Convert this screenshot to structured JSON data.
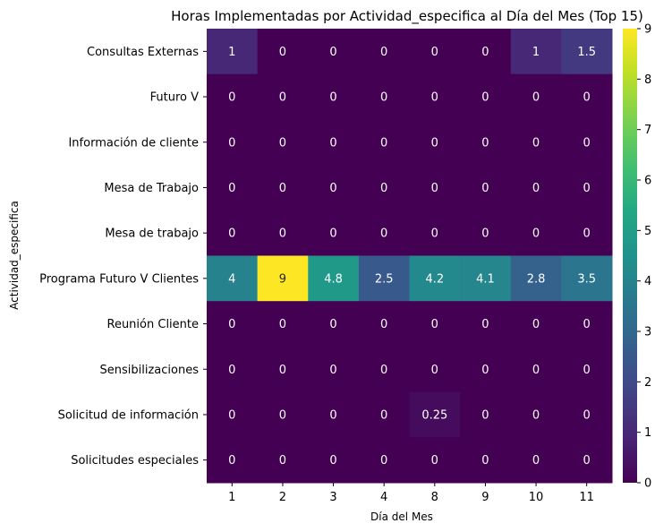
{
  "chart_data": {
    "type": "heatmap",
    "title": "Horas Implementadas por Actividad_especifica al Día del Mes (Top 15)",
    "xlabel": "Día del Mes",
    "ylabel": "Actividad_especifica",
    "x_categories": [
      "1",
      "2",
      "3",
      "4",
      "8",
      "9",
      "10",
      "11"
    ],
    "y_categories": [
      "Consultas Externas",
      "Futuro V",
      "Información de cliente",
      "Mesa de Trabajo",
      "Mesa de trabajo",
      "Programa Futuro V Clientes",
      "Reunión Cliente",
      "Sensibilizaciones",
      "Solicitud de información",
      "Solicitudes especiales"
    ],
    "values": [
      [
        1,
        0,
        0,
        0,
        0,
        0,
        1,
        1.5
      ],
      [
        0,
        0,
        0,
        0,
        0,
        0,
        0,
        0
      ],
      [
        0,
        0,
        0,
        0,
        0,
        0,
        0,
        0
      ],
      [
        0,
        0,
        0,
        0,
        0,
        0,
        0,
        0
      ],
      [
        0,
        0,
        0,
        0,
        0,
        0,
        0,
        0
      ],
      [
        4,
        9,
        4.8,
        2.5,
        4.2,
        4.1,
        2.8,
        3.5
      ],
      [
        0,
        0,
        0,
        0,
        0,
        0,
        0,
        0
      ],
      [
        0,
        0,
        0,
        0,
        0,
        0,
        0,
        0
      ],
      [
        0,
        0,
        0,
        0,
        0.25,
        0,
        0,
        0
      ],
      [
        0,
        0,
        0,
        0,
        0,
        0,
        0,
        0
      ]
    ],
    "colormap": "viridis",
    "value_range": [
      0,
      9
    ],
    "colorbar_ticks": [
      "0",
      "1",
      "2",
      "3",
      "4",
      "5",
      "6",
      "7",
      "8",
      "9"
    ],
    "annotations": true,
    "grid": false,
    "legend": "colorbar-right"
  }
}
